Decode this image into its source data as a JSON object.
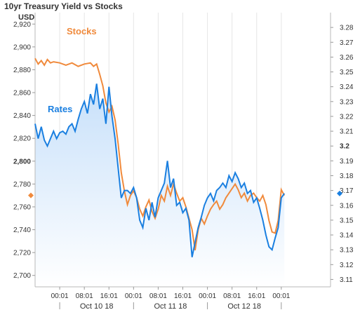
{
  "chart_data": {
    "type": "line",
    "title": "10yr Treasury Yield vs Stocks",
    "left_axis_unit": "USD",
    "left_axis": {
      "ylim": [
        2690,
        2930
      ],
      "ticks": [
        "2,700",
        "2,720",
        "2,740",
        "2,760",
        "2,780",
        "2,800",
        "2,820",
        "2,840",
        "2,860",
        "2,880",
        "2,900",
        "2,920"
      ],
      "bold_tick": "2,800"
    },
    "right_axis": {
      "ylim": [
        3.105,
        3.29
      ],
      "ticks": [
        "3.11",
        "3.12",
        "3.13",
        "3.14",
        "3.15",
        "3.16",
        "3.17",
        "3.18",
        "3.19",
        "3.2",
        "3.21",
        "3.22",
        "3.23",
        "3.24",
        "3.25",
        "3.26",
        "3.27",
        "3.28"
      ],
      "bold_tick": "3.2"
    },
    "x_axis": {
      "range": [
        0,
        96
      ],
      "time_ticks": [
        {
          "x": 8,
          "label": "00:01"
        },
        {
          "x": 16,
          "label": "08:01"
        },
        {
          "x": 24,
          "label": "16:01"
        },
        {
          "x": 32,
          "label": "00:01"
        },
        {
          "x": 40,
          "label": "08:01"
        },
        {
          "x": 48,
          "label": "16:01"
        },
        {
          "x": 56,
          "label": "00:01"
        },
        {
          "x": 64,
          "label": "08:01"
        },
        {
          "x": 72,
          "label": "16:01"
        },
        {
          "x": 80,
          "label": "00:01"
        }
      ],
      "date_labels": [
        {
          "x": 20,
          "label": "Oct 10 18"
        },
        {
          "x": 44,
          "label": "Oct 11 18"
        },
        {
          "x": 68,
          "label": "Oct 12 18"
        }
      ],
      "date_separators": [
        8,
        32,
        56,
        80
      ]
    },
    "series": [
      {
        "name": "Stocks",
        "color": "#f08a3c",
        "axis": "left",
        "points": [
          [
            0,
            2890
          ],
          [
            1,
            2885
          ],
          [
            2,
            2888
          ],
          [
            3,
            2884
          ],
          [
            4,
            2889
          ],
          [
            5,
            2886
          ],
          [
            6,
            2887
          ],
          [
            8,
            2886
          ],
          [
            10,
            2884
          ],
          [
            12,
            2886
          ],
          [
            14,
            2883
          ],
          [
            16,
            2885
          ],
          [
            18,
            2886
          ],
          [
            19,
            2883
          ],
          [
            20,
            2885
          ],
          [
            21,
            2876
          ],
          [
            22,
            2866
          ],
          [
            23,
            2851
          ],
          [
            24,
            2843
          ],
          [
            25,
            2848
          ],
          [
            26,
            2836
          ],
          [
            27,
            2815
          ],
          [
            28,
            2790
          ],
          [
            29,
            2774
          ],
          [
            30,
            2762
          ],
          [
            31,
            2770
          ],
          [
            32,
            2774
          ],
          [
            33,
            2768
          ],
          [
            34,
            2758
          ],
          [
            35,
            2752
          ],
          [
            36,
            2760
          ],
          [
            37,
            2766
          ],
          [
            38,
            2756
          ],
          [
            39,
            2750
          ],
          [
            40,
            2758
          ],
          [
            41,
            2770
          ],
          [
            42,
            2765
          ],
          [
            43,
            2778
          ],
          [
            44,
            2770
          ],
          [
            45,
            2780
          ],
          [
            46,
            2772
          ],
          [
            47,
            2765
          ],
          [
            48,
            2768
          ],
          [
            49,
            2760
          ],
          [
            50,
            2750
          ],
          [
            51,
            2740
          ],
          [
            52,
            2722
          ],
          [
            53,
            2740
          ],
          [
            54,
            2750
          ],
          [
            55,
            2745
          ],
          [
            56,
            2752
          ],
          [
            57,
            2758
          ],
          [
            58,
            2762
          ],
          [
            59,
            2765
          ],
          [
            60,
            2758
          ],
          [
            61,
            2762
          ],
          [
            62,
            2768
          ],
          [
            63,
            2772
          ],
          [
            64,
            2776
          ],
          [
            65,
            2780
          ],
          [
            66,
            2775
          ],
          [
            67,
            2768
          ],
          [
            68,
            2772
          ],
          [
            69,
            2765
          ],
          [
            70,
            2770
          ],
          [
            71,
            2772
          ],
          [
            72,
            2768
          ],
          [
            73,
            2765
          ],
          [
            74,
            2770
          ],
          [
            75,
            2762
          ],
          [
            76,
            2748
          ],
          [
            77,
            2738
          ],
          [
            78,
            2737
          ],
          [
            79,
            2748
          ],
          [
            80,
            2775
          ],
          [
            81,
            2770
          ]
        ],
        "end_value": 2770
      },
      {
        "name": "Rates",
        "color": "#1a7fe0",
        "axis": "right",
        "points": [
          [
            0,
            3.215
          ],
          [
            1,
            3.205
          ],
          [
            2,
            3.213
          ],
          [
            3,
            3.204
          ],
          [
            4,
            3.2
          ],
          [
            5,
            3.205
          ],
          [
            6,
            3.21
          ],
          [
            7,
            3.205
          ],
          [
            8,
            3.209
          ],
          [
            9,
            3.21
          ],
          [
            10,
            3.208
          ],
          [
            11,
            3.213
          ],
          [
            12,
            3.215
          ],
          [
            13,
            3.21
          ],
          [
            14,
            3.218
          ],
          [
            15,
            3.225
          ],
          [
            16,
            3.23
          ],
          [
            17,
            3.222
          ],
          [
            18,
            3.235
          ],
          [
            19,
            3.228
          ],
          [
            20,
            3.242
          ],
          [
            21,
            3.225
          ],
          [
            22,
            3.232
          ],
          [
            23,
            3.215
          ],
          [
            24,
            3.24
          ],
          [
            25,
            3.22
          ],
          [
            26,
            3.205
          ],
          [
            27,
            3.185
          ],
          [
            28,
            3.165
          ],
          [
            29,
            3.17
          ],
          [
            30,
            3.17
          ],
          [
            31,
            3.168
          ],
          [
            32,
            3.172
          ],
          [
            33,
            3.165
          ],
          [
            34,
            3.15
          ],
          [
            35,
            3.145
          ],
          [
            36,
            3.158
          ],
          [
            37,
            3.15
          ],
          [
            38,
            3.162
          ],
          [
            39,
            3.152
          ],
          [
            40,
            3.165
          ],
          [
            41,
            3.17
          ],
          [
            42,
            3.175
          ],
          [
            43,
            3.19
          ],
          [
            44,
            3.172
          ],
          [
            45,
            3.178
          ],
          [
            46,
            3.16
          ],
          [
            47,
            3.162
          ],
          [
            48,
            3.155
          ],
          [
            49,
            3.158
          ],
          [
            50,
            3.15
          ],
          [
            51,
            3.125
          ],
          [
            52,
            3.135
          ],
          [
            53,
            3.145
          ],
          [
            54,
            3.152
          ],
          [
            55,
            3.16
          ],
          [
            56,
            3.165
          ],
          [
            57,
            3.168
          ],
          [
            58,
            3.163
          ],
          [
            59,
            3.17
          ],
          [
            60,
            3.172
          ],
          [
            61,
            3.175
          ],
          [
            62,
            3.172
          ],
          [
            63,
            3.18
          ],
          [
            64,
            3.176
          ],
          [
            65,
            3.182
          ],
          [
            66,
            3.178
          ],
          [
            67,
            3.172
          ],
          [
            68,
            3.175
          ],
          [
            69,
            3.168
          ],
          [
            70,
            3.17
          ],
          [
            71,
            3.162
          ],
          [
            72,
            3.165
          ],
          [
            73,
            3.158
          ],
          [
            74,
            3.15
          ],
          [
            75,
            3.14
          ],
          [
            76,
            3.132
          ],
          [
            77,
            3.13
          ],
          [
            78,
            3.138
          ],
          [
            79,
            3.145
          ],
          [
            80,
            3.165
          ],
          [
            81,
            3.168
          ]
        ],
        "end_value": 3.168
      }
    ]
  }
}
